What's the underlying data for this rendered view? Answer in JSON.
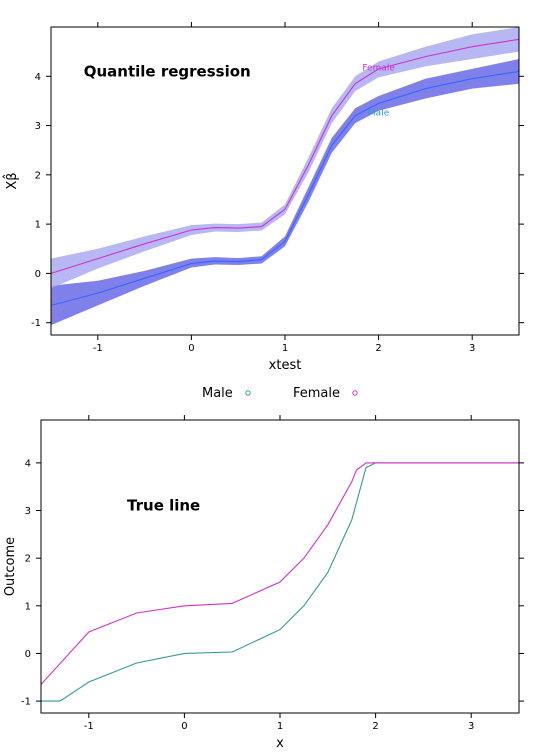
{
  "chart_data": [
    {
      "type": "line",
      "title": "Quantile regression",
      "xlabel": "xtest",
      "ylabel": "Xβ̂",
      "xlim": [
        -1.5,
        3.5
      ],
      "ylim": [
        -1.25,
        5.0
      ],
      "xticks": [
        "-1",
        "0",
        "1",
        "2",
        "3"
      ],
      "yticks": [
        "-1",
        "0",
        "1",
        "2",
        "3",
        "4"
      ],
      "series": [
        {
          "name": "Male",
          "color": "#3366ff",
          "band_color": "#6a6ae8",
          "x": [
            -1.5,
            -1.0,
            -0.5,
            0.0,
            0.25,
            0.5,
            0.75,
            1.0,
            1.25,
            1.5,
            1.75,
            2.0,
            2.5,
            3.0,
            3.5
          ],
          "y": [
            -0.65,
            -0.4,
            -0.1,
            0.2,
            0.25,
            0.24,
            0.28,
            0.65,
            1.6,
            2.6,
            3.2,
            3.45,
            3.75,
            3.95,
            4.1
          ],
          "lower": [
            -1.05,
            -0.65,
            -0.25,
            0.12,
            0.18,
            0.17,
            0.2,
            0.55,
            1.45,
            2.45,
            3.05,
            3.3,
            3.55,
            3.75,
            3.85
          ],
          "upper": [
            -0.25,
            -0.15,
            0.05,
            0.3,
            0.33,
            0.31,
            0.35,
            0.75,
            1.75,
            2.75,
            3.35,
            3.6,
            3.95,
            4.15,
            4.35
          ]
        },
        {
          "name": "Female",
          "color": "#cc33cc",
          "band_color": "#aaaaf2",
          "x": [
            -1.5,
            -1.0,
            -0.5,
            0.0,
            0.25,
            0.5,
            0.75,
            1.0,
            1.25,
            1.5,
            1.75,
            2.0,
            2.5,
            3.0,
            3.5
          ],
          "y": [
            0.0,
            0.3,
            0.6,
            0.88,
            0.93,
            0.92,
            0.95,
            1.3,
            2.2,
            3.2,
            3.85,
            4.15,
            4.4,
            4.6,
            4.75
          ],
          "lower": [
            -0.3,
            0.1,
            0.45,
            0.78,
            0.85,
            0.84,
            0.87,
            1.2,
            2.05,
            3.05,
            3.7,
            3.98,
            4.2,
            4.35,
            4.5
          ],
          "upper": [
            0.3,
            0.5,
            0.75,
            0.98,
            1.01,
            1.0,
            1.03,
            1.4,
            2.35,
            3.35,
            4.0,
            4.3,
            4.6,
            4.85,
            5.0
          ]
        }
      ],
      "labels": [
        {
          "text": "Female",
          "x": 2.0,
          "y": 4.12,
          "color": "#cc33cc"
        },
        {
          "text": "Male",
          "x": 2.0,
          "y": 3.2,
          "color": "#3399cc"
        }
      ],
      "annotation": {
        "text": "Quantile regression",
        "x": -1.15,
        "y": 4.0
      }
    },
    {
      "type": "line",
      "xlabel": "x",
      "ylabel": "Outcome",
      "xlim": [
        -1.5,
        3.5
      ],
      "ylim": [
        -1.25,
        4.9
      ],
      "xticks": [
        "-1",
        "0",
        "1",
        "2",
        "3"
      ],
      "yticks": [
        "-1",
        "0",
        "1",
        "2",
        "3",
        "4"
      ],
      "series": [
        {
          "name": "Male",
          "color": "#339999",
          "x": [
            -1.5,
            -1.3,
            -1.0,
            -0.5,
            0.0,
            0.5,
            1.0,
            1.25,
            1.5,
            1.75,
            1.9,
            2.0,
            2.5,
            3.0,
            3.5
          ],
          "y": [
            -1.0,
            -1.0,
            -0.6,
            -0.2,
            0.0,
            0.03,
            0.5,
            1.0,
            1.7,
            2.8,
            3.9,
            4.0,
            4.0,
            4.0,
            4.0
          ]
        },
        {
          "name": "Female",
          "color": "#cc33cc",
          "x": [
            -1.5,
            -1.0,
            -0.5,
            0.0,
            0.5,
            1.0,
            1.25,
            1.5,
            1.75,
            1.8,
            1.9,
            2.0,
            2.5,
            3.0,
            3.5
          ],
          "y": [
            -0.65,
            0.45,
            0.85,
            1.0,
            1.05,
            1.5,
            2.0,
            2.7,
            3.6,
            3.85,
            4.0,
            4.0,
            4.0,
            4.0,
            4.0
          ]
        }
      ],
      "legend": {
        "placement": "top",
        "items": [
          "Male",
          "Female"
        ]
      },
      "annotation": {
        "text": "True line",
        "x": -0.6,
        "y": 3.0
      }
    }
  ]
}
